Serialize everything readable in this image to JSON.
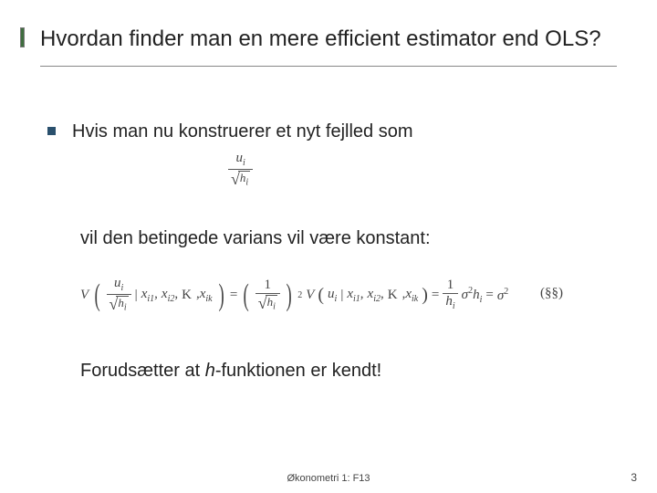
{
  "accent_color": "#3f6e3f",
  "bullet_color": "#2a506d",
  "title": "Hvordan finder man en mere efficient estimator end OLS?",
  "bullet_text": "Hvis man nu konstruerer et nyt fejlled som",
  "line2_text": "vil den betingede varians vil være konstant:",
  "line3_prefix": "Forudsætter at ",
  "line3_italic": "h",
  "line3_suffix": "-funktionen er kendt!",
  "eq1": {
    "num": "u",
    "num_sub": "i",
    "den_var": "h",
    "den_sub": "i"
  },
  "eq2": {
    "V": "V",
    "frac_num": "u",
    "frac_num_sub": "i",
    "frac_den": "h",
    "frac_den_sub": "i",
    "bar": "|",
    "x1": "x",
    "x1_sub": "i1",
    "x2": "x",
    "x2_sub": "i2",
    "dots": "K",
    "xk": "x",
    "xk_sub": "ik",
    "eq": "=",
    "one_over": "1",
    "sigma": "σ",
    "sq": "2",
    "h": "h",
    "h_sub": "i",
    "ref": "(§§)"
  },
  "footer": "Økonometri 1: F13",
  "page": "3"
}
